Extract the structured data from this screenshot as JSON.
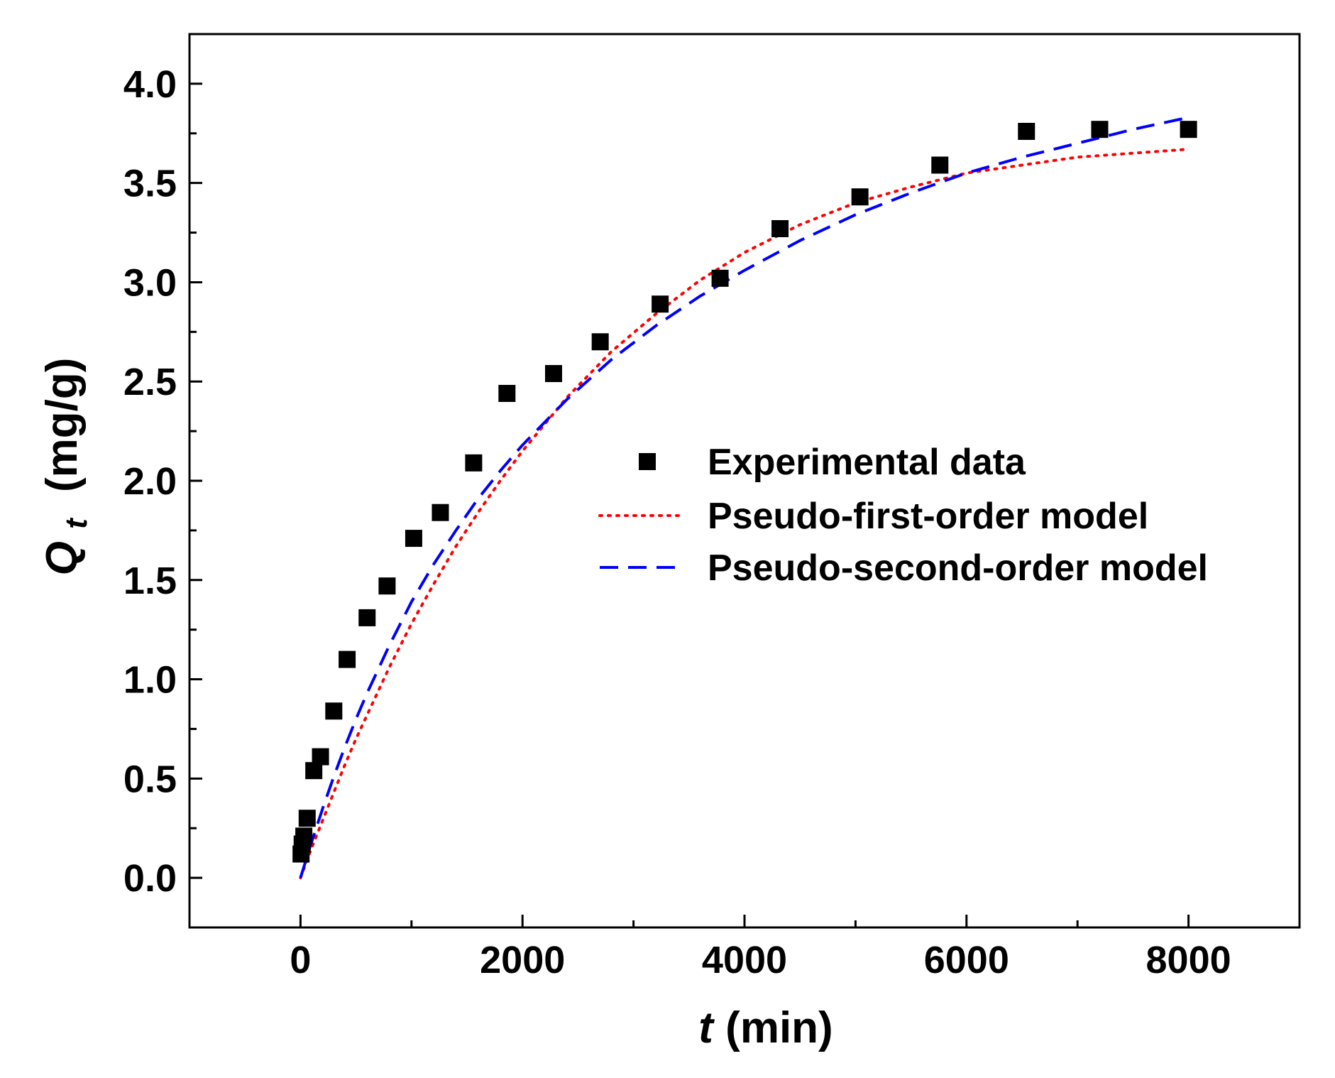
{
  "chart_data": {
    "type": "scatter",
    "xlabel": "t",
    "xlabel_unit": "(min)",
    "ylabel": "Q",
    "ylabel_sub": "t",
    "ylabel_unit": "(mg/g)",
    "xlim": [
      -1000,
      9000
    ],
    "ylim": [
      -0.25,
      4.25
    ],
    "x_ticks": [
      0,
      2000,
      4000,
      6000,
      8000
    ],
    "x_tick_labels": [
      "0",
      "2000",
      "4000",
      "6000",
      "8000"
    ],
    "y_ticks": [
      0.0,
      0.5,
      1.0,
      1.5,
      2.0,
      2.5,
      3.0,
      3.5,
      4.0
    ],
    "y_tick_labels": [
      "0.0",
      "0.5",
      "1.0",
      "1.5",
      "2.0",
      "2.5",
      "3.0",
      "3.5",
      "4.0"
    ],
    "grid": false,
    "legend_position": "center-right",
    "series": [
      {
        "name": "Experimental data",
        "kind": "markers",
        "color": "#000000",
        "x": [
          5,
          15,
          30,
          60,
          120,
          180,
          300,
          420,
          600,
          780,
          1020,
          1260,
          1560,
          1860,
          2280,
          2700,
          3240,
          3780,
          4320,
          5040,
          5760,
          6540,
          7200,
          8000
        ],
        "y": [
          0.12,
          0.17,
          0.21,
          0.3,
          0.54,
          0.61,
          0.84,
          1.1,
          1.31,
          1.47,
          1.71,
          1.84,
          2.09,
          2.44,
          2.54,
          2.7,
          2.89,
          3.02,
          3.27,
          3.43,
          3.59,
          3.76,
          3.77,
          3.77
        ]
      },
      {
        "name": "Pseudo-first-order model",
        "kind": "dotted-line",
        "color": "#ff0000",
        "x": [
          0,
          100,
          200,
          300,
          400,
          500,
          600,
          800,
          1000,
          1200,
          1400,
          1600,
          1800,
          2000,
          2400,
          2800,
          3200,
          3600,
          4000,
          4500,
          5000,
          5500,
          6000,
          6500,
          7000,
          7500,
          8000
        ],
        "y": [
          0.0,
          0.15,
          0.29,
          0.43,
          0.57,
          0.7,
          0.82,
          1.06,
          1.28,
          1.48,
          1.67,
          1.84,
          2.0,
          2.15,
          2.42,
          2.65,
          2.84,
          3.01,
          3.15,
          3.29,
          3.4,
          3.48,
          3.55,
          3.59,
          3.63,
          3.65,
          3.67
        ]
      },
      {
        "name": "Pseudo-second-order model",
        "kind": "dashed-line",
        "color": "#0000ff",
        "x": [
          0,
          100,
          200,
          300,
          400,
          500,
          600,
          800,
          1000,
          1200,
          1400,
          1600,
          1800,
          2000,
          2400,
          2800,
          3200,
          3600,
          4000,
          4500,
          5000,
          5500,
          6000,
          6500,
          7000,
          7500,
          8000
        ],
        "y": [
          0.0,
          0.18,
          0.35,
          0.51,
          0.66,
          0.8,
          0.93,
          1.17,
          1.39,
          1.58,
          1.75,
          1.91,
          2.05,
          2.18,
          2.41,
          2.61,
          2.78,
          2.93,
          3.06,
          3.21,
          3.34,
          3.45,
          3.55,
          3.63,
          3.7,
          3.77,
          3.83
        ]
      }
    ]
  }
}
